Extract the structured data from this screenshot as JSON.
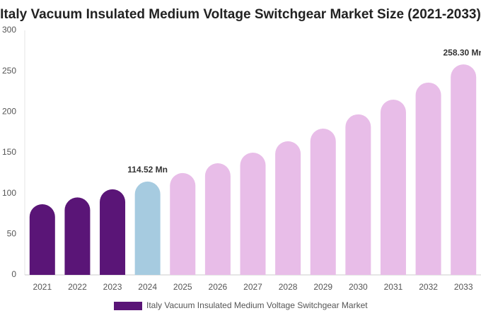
{
  "chart_data": {
    "type": "bar",
    "title": "Italy Vacuum Insulated Medium Voltage Switchgear Market Size (2021-2033)",
    "categories": [
      "2021",
      "2022",
      "2023",
      "2024",
      "2025",
      "2026",
      "2027",
      "2028",
      "2029",
      "2030",
      "2031",
      "2032",
      "2033"
    ],
    "series": [
      {
        "name": "Italy Vacuum Insulated Medium Voltage Switchgear Market",
        "color": "#5a1577",
        "values": [
          86.7,
          95,
          105,
          114.52,
          125,
          137,
          150,
          164,
          179.5,
          197,
          215,
          236,
          258.3
        ],
        "value_labels": [
          null,
          null,
          null,
          "114.52 Mn",
          null,
          null,
          null,
          null,
          null,
          null,
          null,
          null,
          "258.30 Mn"
        ],
        "colors": [
          "#5a1577",
          "#5a1577",
          "#5a1577",
          "#a6cbe0",
          "#e8bde8",
          "#e8bde8",
          "#e8bde8",
          "#e8bde8",
          "#e8bde8",
          "#e8bde8",
          "#e8bde8",
          "#e8bde8",
          "#e8bde8"
        ]
      }
    ],
    "ylim": [
      0,
      300
    ],
    "yticks": [
      0,
      50,
      100,
      150,
      200,
      250,
      300
    ],
    "grid": false
  }
}
